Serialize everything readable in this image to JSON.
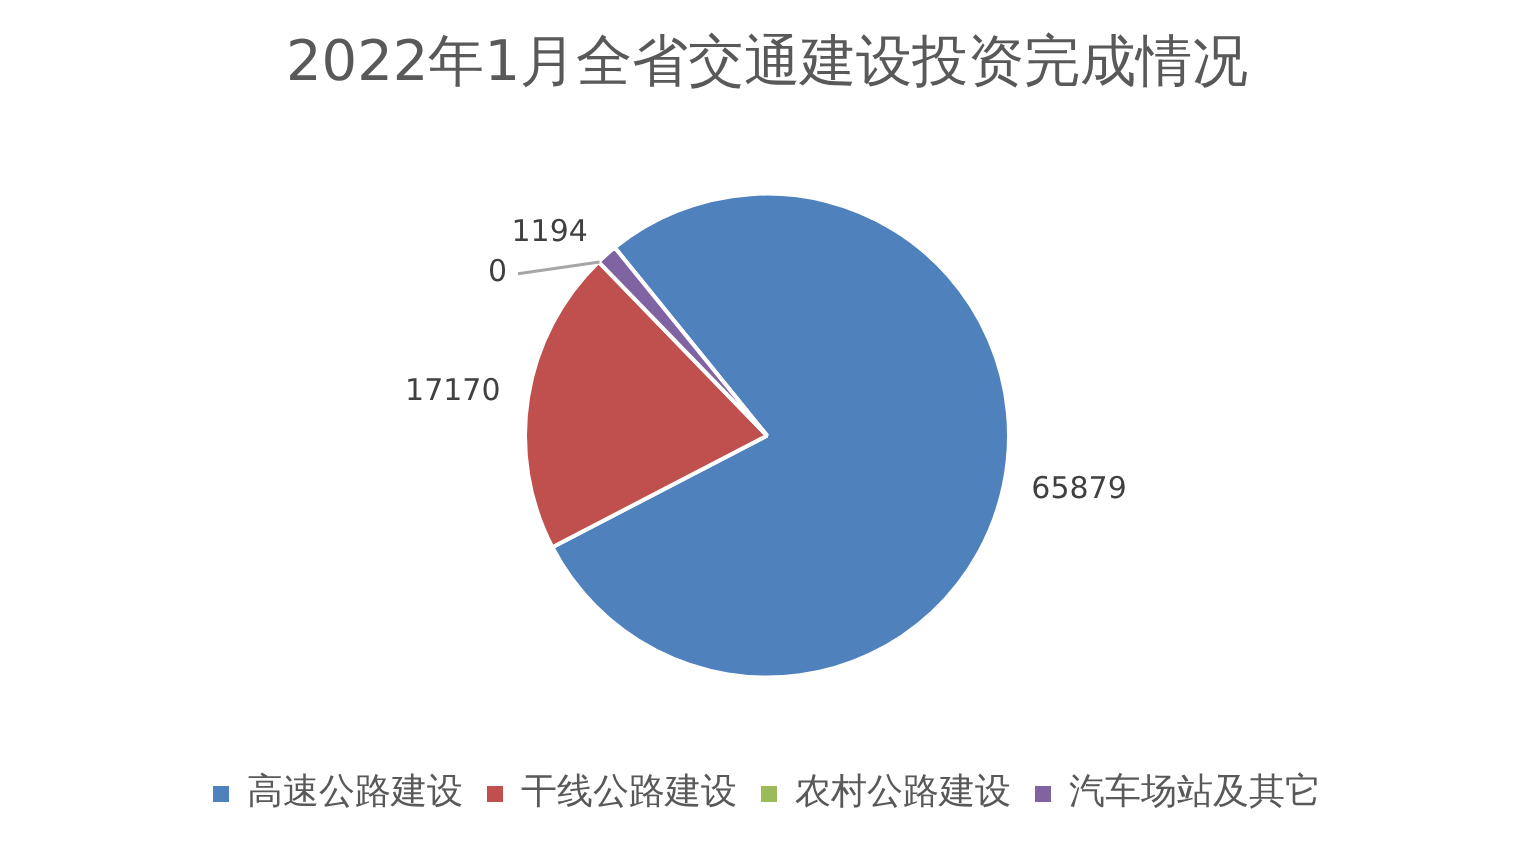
{
  "chart_data": {
    "type": "pie",
    "title": "2022年1月全省交通建设投资完成情况",
    "categories": [
      "高速公路建设",
      "干线公路建设",
      "农村公路建设",
      "汽车场站及其它"
    ],
    "values": [
      65879,
      17170,
      0,
      1194
    ],
    "value_labels": [
      "65879",
      "17170",
      "0",
      "1194"
    ],
    "colors": [
      "#4f81bd",
      "#c0504d",
      "#9bbb59",
      "#8064a2"
    ],
    "legend": "bottom"
  }
}
